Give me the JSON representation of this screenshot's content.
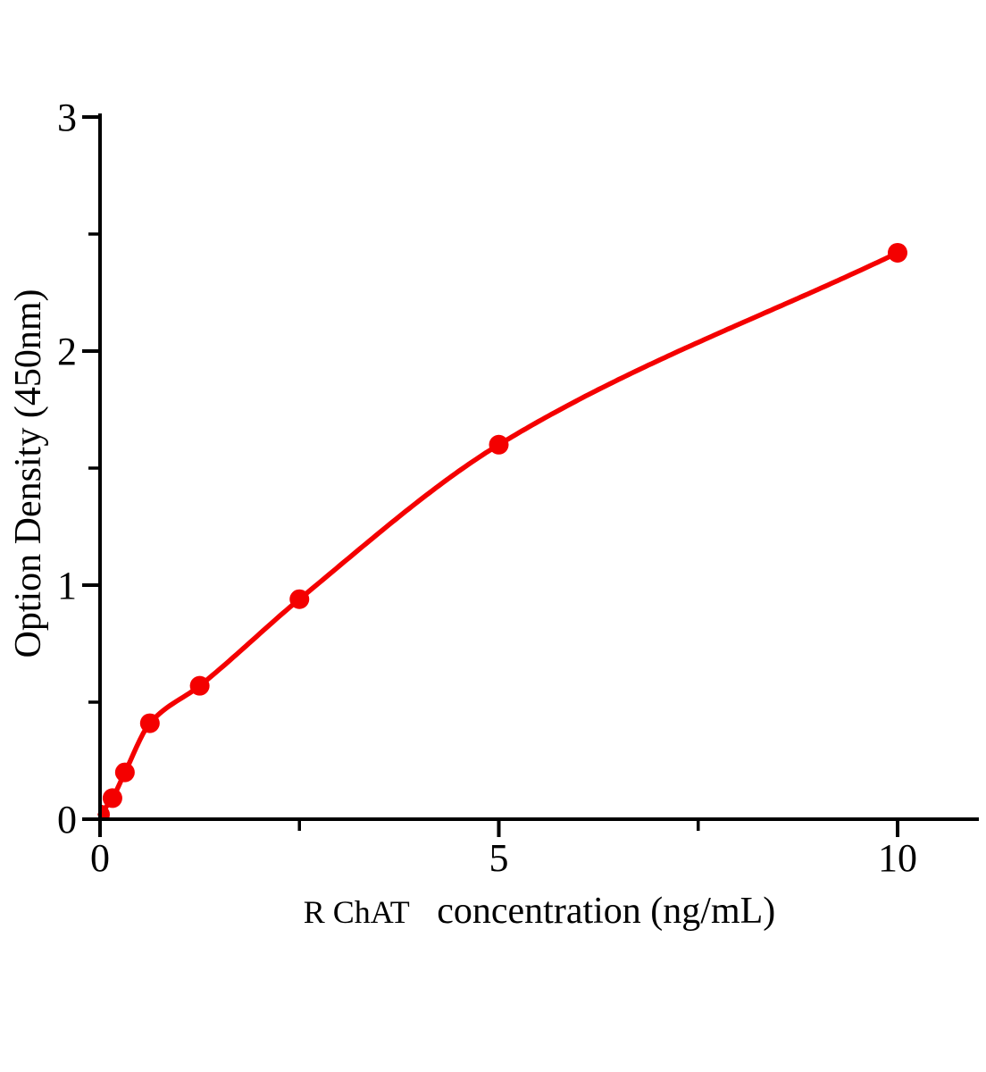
{
  "figure": {
    "background": "#ffffff"
  },
  "chart_data": {
    "type": "scatter",
    "title": "",
    "xlabel_prefix": "R ChAT",
    "xlabel_rest": "concentration（ng/mL）",
    "ylabel": "Option Density（450nm）",
    "x": [
      0,
      0.156,
      0.312,
      0.625,
      1.25,
      2.5,
      5,
      10
    ],
    "y": [
      0.02,
      0.09,
      0.2,
      0.41,
      0.57,
      0.94,
      1.6,
      2.42
    ],
    "xlim": [
      0,
      11
    ],
    "ylim": [
      0,
      3
    ],
    "x_major_ticks": [
      0,
      5,
      10
    ],
    "x_minor_ticks": [
      2.5,
      7.5
    ],
    "y_major_ticks": [
      0,
      1,
      2,
      3
    ],
    "y_minor_ticks": [
      0.5,
      1.5,
      2.5
    ],
    "grid": false,
    "legend": null,
    "marker": "circle",
    "curve": "smooth-fit-through-points",
    "colors": {
      "points": "#f40000",
      "line": "#f40000",
      "axis": "#000000",
      "text": "#000000"
    }
  }
}
